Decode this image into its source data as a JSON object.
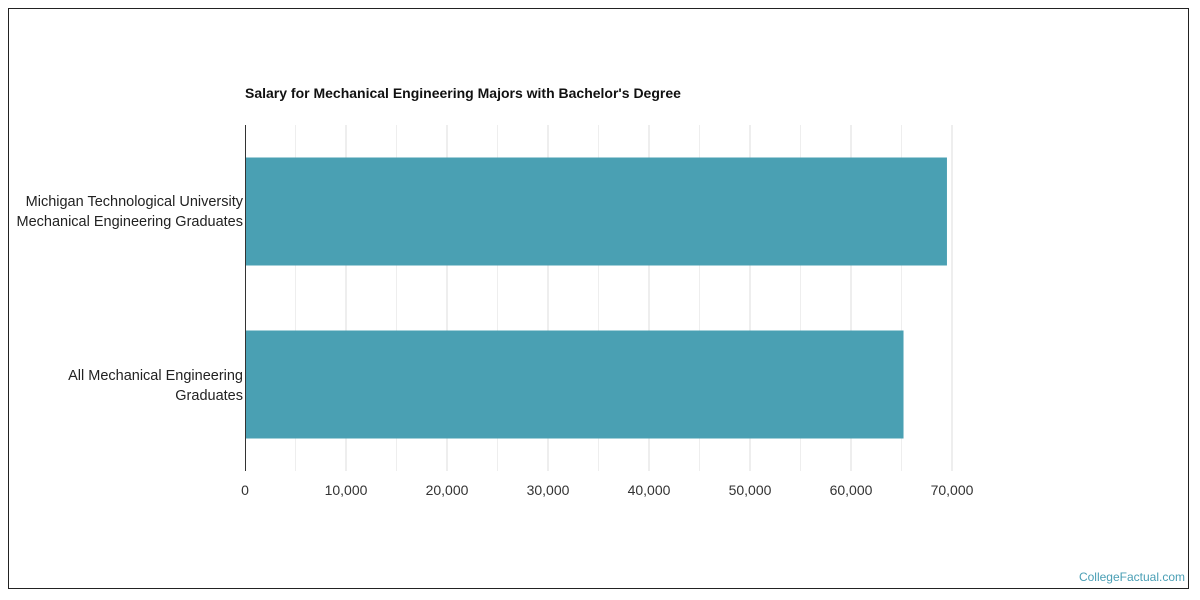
{
  "brand": {
    "watermark": "CollegeFactual.com"
  },
  "chart_data": {
    "type": "bar",
    "orientation": "horizontal",
    "title": "Salary for Mechanical Engineering Majors with Bachelor's Degree",
    "categories": [
      [
        "Michigan Technological University",
        "Mechanical Engineering Graduates"
      ],
      [
        "All Mechanical Engineering",
        "Graduates"
      ]
    ],
    "values": [
      69500,
      65200
    ],
    "xlim": [
      0,
      70000
    ],
    "xticks": [
      0,
      10000,
      20000,
      30000,
      40000,
      50000,
      60000,
      70000
    ],
    "xtick_labels": [
      "0",
      "10,000",
      "20,000",
      "30,000",
      "40,000",
      "50,000",
      "60,000",
      "70,000"
    ],
    "grid": true,
    "colors": {
      "bar": "#4aa0b3",
      "grid": "#dddddd",
      "axis": "#333333",
      "brand": "#4a9fb5"
    }
  }
}
